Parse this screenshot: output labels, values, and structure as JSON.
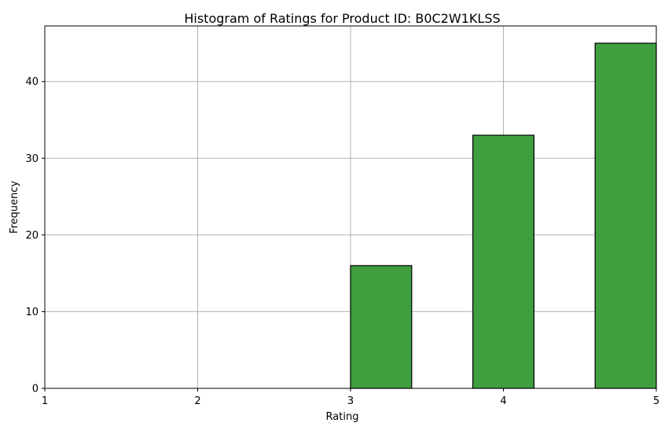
{
  "chart_data": {
    "type": "bar",
    "title": "Histogram of Ratings for Product ID: B0C2W1KLSS",
    "xlabel": "Rating",
    "ylabel": "Frequency",
    "xlim": [
      1,
      5
    ],
    "ylim": [
      0,
      47.25
    ],
    "xticks": [
      1,
      2,
      3,
      4,
      5
    ],
    "yticks": [
      0,
      10,
      20,
      30,
      40
    ],
    "grid": true,
    "bins": [
      {
        "x0": 1.0,
        "x1": 1.4,
        "value": 0
      },
      {
        "x0": 1.4,
        "x1": 1.8,
        "value": 0
      },
      {
        "x0": 1.8,
        "x1": 2.2,
        "value": 0
      },
      {
        "x0": 2.2,
        "x1": 2.6,
        "value": 0
      },
      {
        "x0": 2.6,
        "x1": 3.0,
        "value": 0
      },
      {
        "x0": 3.0,
        "x1": 3.4,
        "value": 16
      },
      {
        "x0": 3.4,
        "x1": 3.8,
        "value": 0
      },
      {
        "x0": 3.8,
        "x1": 4.2,
        "value": 33
      },
      {
        "x0": 4.2,
        "x1": 4.6,
        "value": 0
      },
      {
        "x0": 4.6,
        "x1": 5.0,
        "value": 45
      }
    ],
    "colors": {
      "bar_fill": "#3f9f3f",
      "bar_edge": "#000000",
      "grid": "#b0b0b0"
    }
  }
}
